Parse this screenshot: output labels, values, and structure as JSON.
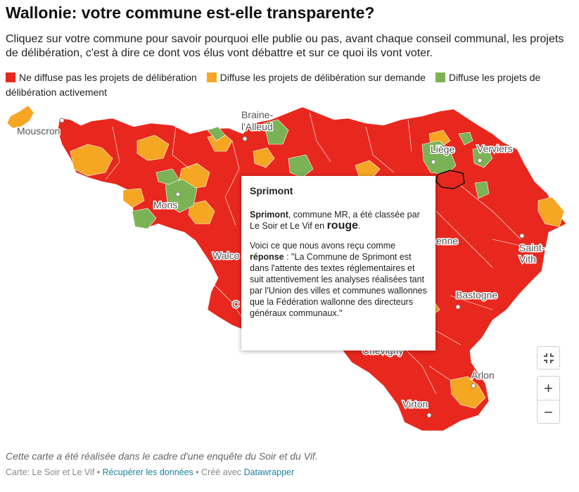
{
  "header": {
    "title": "Wallonie: votre commune est-elle transparente?",
    "subtitle": "Cliquez sur votre commune pour savoir pourquoi elle publie ou pas, avant chaque conseil communal, les projets de délibération, c'est à dire ce dont vos élus vont débattre et sur ce quoi ils vont voter."
  },
  "legend": {
    "items": [
      {
        "label": "Ne diffuse pas les projets de délibération",
        "color": "#e8281e"
      },
      {
        "label": "Diffuse les projets de délibération sur demande",
        "color": "#f5a623"
      },
      {
        "label": "Diffuse les projets de délibération activement",
        "color": "#7cb256"
      }
    ]
  },
  "map": {
    "cities": [
      "Mouscron",
      "Braine-",
      "l'Alleud",
      "Liège",
      "Verviers",
      "Mons",
      "Walco",
      "C",
      "enne",
      "Saint-",
      "Vith",
      "Bastogne",
      "Chevigny",
      "Arlon",
      "Virton"
    ],
    "selected_commune": "Sprimont"
  },
  "tooltip": {
    "title": "Sprimont",
    "line1_name": "Sprimont",
    "line1_text": ", commune MR, a été classée par Le Soir et Le Vif en ",
    "line1_color": "rouge",
    "line1_end": ".",
    "line2_text": "Voici ce que nous avons reçu comme ",
    "line2_bold": "réponse",
    "line2_rest": " : \"La Commune de Sprimont est dans l'attente des textes réglementaires et suit attentivement les analyses réalisées tant par l'Union des villes et communes wallonnes que la Fédération wallonne des directeurs généraux communaux.\""
  },
  "controls": {
    "fullscreen_icon": "fullscreen-exit-icon",
    "zoom_in": "+",
    "zoom_out": "−"
  },
  "note": "Cette carte a été réalisée dans le cadre d'une enquête du Soir et du Vif.",
  "footer": {
    "source_prefix": "Carte: Le Soir et Le Vif • ",
    "download_link": "Récupérer les données",
    "mid": " • Créé avec ",
    "tool_link": "Datawrapper"
  }
}
